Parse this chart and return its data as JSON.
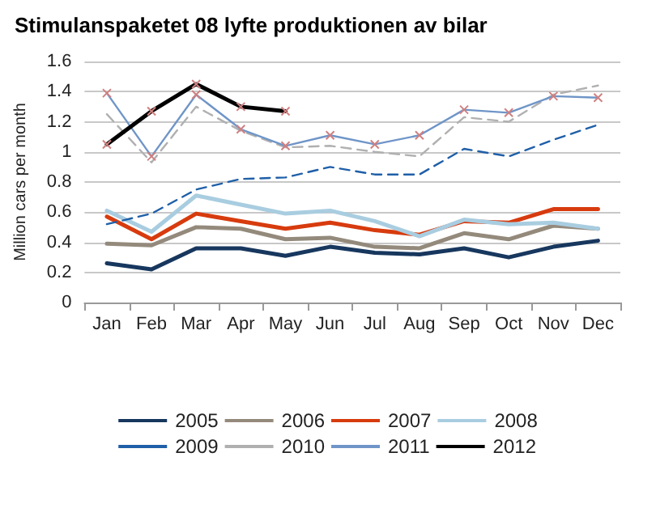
{
  "chart_data": {
    "type": "line",
    "title": "Stimulanspaketet 08 lyfte produktionen av bilar",
    "ylabel": "Million cars per month",
    "categories": [
      "Jan",
      "Feb",
      "Mar",
      "Apr",
      "May",
      "Jun",
      "Jul",
      "Aug",
      "Sep",
      "Oct",
      "Nov",
      "Dec"
    ],
    "ylim": [
      0,
      1.6
    ],
    "yticks": [
      0,
      0.2,
      0.4,
      0.6,
      0.8,
      1,
      1.2,
      1.4,
      1.6
    ],
    "grid": "y",
    "legend": "bottom",
    "marker": "none",
    "line_style": "solid",
    "series": [
      {
        "name": "2005",
        "color": "#17375e",
        "values": [
          0.26,
          0.22,
          0.36,
          0.36,
          0.31,
          0.37,
          0.33,
          0.32,
          0.36,
          0.3,
          0.37,
          0.41
        ]
      },
      {
        "name": "2006",
        "color": "#948a7c",
        "values": [
          0.39,
          0.38,
          0.5,
          0.49,
          0.42,
          0.43,
          0.37,
          0.36,
          0.46,
          0.42,
          0.51,
          0.49
        ]
      },
      {
        "name": "2007",
        "color": "#d73b0e",
        "values": [
          0.57,
          0.42,
          0.59,
          0.54,
          0.49,
          0.53,
          0.48,
          0.45,
          0.54,
          0.53,
          0.62,
          0.62
        ]
      },
      {
        "name": "2008",
        "color": "#a9cde0",
        "values": [
          0.61,
          0.47,
          0.71,
          0.65,
          0.59,
          0.61,
          0.54,
          0.44,
          0.55,
          0.52,
          0.53,
          0.49
        ]
      },
      {
        "name": "2009",
        "color": "#1f5fa8",
        "line_style": "dashed",
        "values": [
          0.52,
          0.59,
          0.75,
          0.82,
          0.83,
          0.9,
          0.85,
          0.85,
          1.02,
          0.97,
          1.08,
          1.18
        ]
      },
      {
        "name": "2010",
        "color": "#b0b0b0",
        "line_style": "dashed",
        "values": [
          1.25,
          0.93,
          1.3,
          1.14,
          1.03,
          1.04,
          1.0,
          0.97,
          1.23,
          1.2,
          1.38,
          1.44
        ]
      },
      {
        "name": "2011",
        "color": "#6f95c8",
        "marker": "cross",
        "values": [
          1.39,
          0.97,
          1.38,
          1.15,
          1.04,
          1.11,
          1.05,
          1.11,
          1.28,
          1.26,
          1.37,
          1.36
        ]
      },
      {
        "name": "2012",
        "color": "#000000",
        "marker": "cross",
        "values": [
          1.05,
          1.27,
          1.45,
          1.3,
          1.27,
          null,
          null,
          null,
          null,
          null,
          null,
          null
        ]
      }
    ]
  }
}
